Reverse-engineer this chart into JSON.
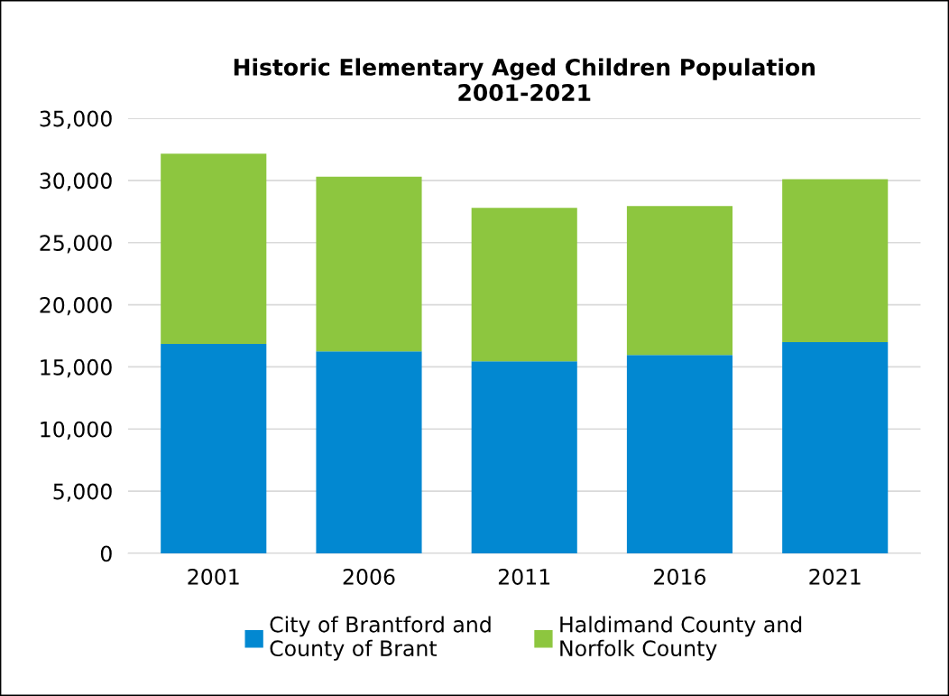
{
  "chart_data": {
    "type": "bar",
    "title": "Historic Elementary Aged Children Population\n2001-2021",
    "categories": [
      "2001",
      "2006",
      "2011",
      "2016",
      "2021"
    ],
    "stacked": true,
    "series": [
      {
        "name": "City of Brantford and\nCounty of Brant",
        "color": "#0288d1",
        "values": [
          16850,
          16250,
          15450,
          15950,
          17000
        ]
      },
      {
        "name": "Haldimand County and\nNorfolk County",
        "color": "#8dc63f",
        "values": [
          15300,
          14050,
          12350,
          12000,
          13100
        ]
      }
    ],
    "ylim": [
      0,
      35000
    ],
    "yticks": [
      {
        "value": 0,
        "label": "0"
      },
      {
        "value": 5000,
        "label": "5,000"
      },
      {
        "value": 10000,
        "label": "10,000"
      },
      {
        "value": 15000,
        "label": "15,000"
      },
      {
        "value": 20000,
        "label": "20,000"
      },
      {
        "value": 25000,
        "label": "25,000"
      },
      {
        "value": 30000,
        "label": "30,000"
      },
      {
        "value": 35000,
        "label": "35,000"
      }
    ],
    "grid": "y",
    "legend": "bottom"
  }
}
